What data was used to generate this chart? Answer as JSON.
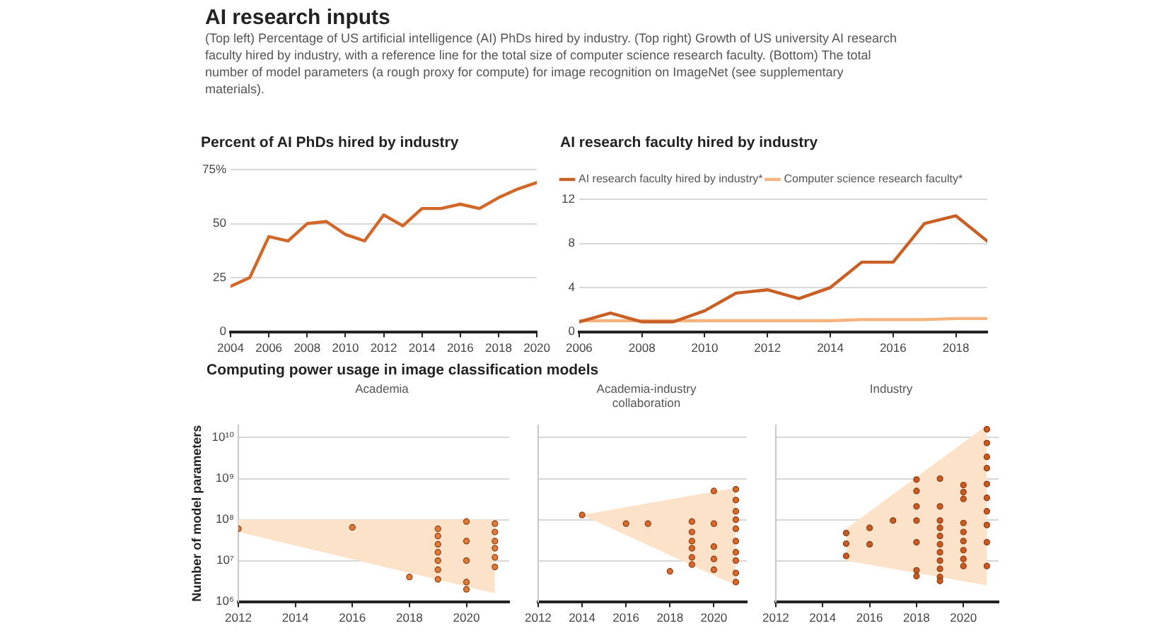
{
  "chart_data": [
    {
      "type": "other",
      "title": "AI research inputs",
      "subtitle": "(Top left) Percentage of US artificial intelligence (AI) PhDs hired by industry. (Top right) Growth of US university AI research faculty hired by industry, with a reference line for the total size of computer science research faculty. (Bottom) The total number of model parameters (a rough proxy for compute) for image recognition on ImageNet (see supplementary materials)."
    },
    {
      "type": "line",
      "title": "Percent of AI PhDs hired by industry",
      "x": [
        2004,
        2005,
        2006,
        2007,
        2008,
        2009,
        2010,
        2011,
        2012,
        2013,
        2014,
        2015,
        2016,
        2017,
        2018,
        2019,
        2020
      ],
      "series": [
        {
          "color": "#d2672a",
          "values": [
            21,
            25,
            44,
            42,
            50,
            51,
            45,
            42,
            54,
            49,
            57,
            57,
            59,
            57,
            62,
            66,
            69
          ]
        }
      ],
      "xlim": [
        2004,
        2020
      ],
      "xticks": [
        2004,
        2006,
        2008,
        2010,
        2012,
        2014,
        2016,
        2018,
        2020
      ],
      "ylim": [
        0,
        75
      ],
      "yticks": [
        0,
        25,
        50,
        {
          "value": 75,
          "label": "75%"
        }
      ],
      "grid": "y"
    },
    {
      "type": "line",
      "title": "AI research faculty hired by industry",
      "x": [
        2006,
        2007,
        2008,
        2009,
        2010,
        2011,
        2012,
        2013,
        2014,
        2015,
        2016,
        2017,
        2018,
        2019
      ],
      "series": [
        {
          "name": "AI research faculty hired by industry*",
          "color": "#c85f25",
          "values": [
            0.9,
            1.7,
            0.9,
            0.9,
            1.9,
            3.5,
            3.8,
            3.0,
            4.0,
            6.3,
            6.3,
            9.8,
            10.5,
            8.2
          ]
        },
        {
          "name": "Computer science research faculty*",
          "color": "#f6b27c",
          "values": [
            1.0,
            1.0,
            1.0,
            1.0,
            1.0,
            1.0,
            1.0,
            1.0,
            1.0,
            1.1,
            1.1,
            1.1,
            1.2,
            1.2
          ]
        }
      ],
      "xlim": [
        2006,
        2019
      ],
      "xticks": [
        2006,
        2008,
        2010,
        2012,
        2014,
        2016,
        2018
      ],
      "ylim": [
        0,
        12
      ],
      "yticks": [
        0,
        4,
        8,
        12
      ],
      "grid": "y",
      "legend": "top left"
    },
    {
      "type": "scatter",
      "title": "Computing power usage in image classification models",
      "subtitle": "Academia",
      "ylabel": "Number of model parameters",
      "log": "y",
      "series": [
        {
          "type": "line",
          "color": "#fbe2c9",
          "x": [
            2012,
            2021
          ],
          "values": [
            null,
            null
          ],
          "lower": [
            50000000.0,
            1600000.0
          ],
          "upper": [
            100000000.0,
            100000000.0
          ]
        },
        {
          "color": "#e07b3a",
          "marker": "circle",
          "x": [
            2012,
            2016,
            2018,
            2019,
            2019,
            2019,
            2019,
            2019,
            2019,
            2019,
            2020,
            2020,
            2020,
            2020,
            2020,
            2021,
            2021,
            2021,
            2021,
            2021,
            2021
          ],
          "values": [
            60000000.0,
            65000000.0,
            4000000.0,
            60000000.0,
            40000000.0,
            25000000.0,
            16000000.0,
            10000000.0,
            6000000.0,
            3500000.0,
            90000000.0,
            30000000.0,
            10000000.0,
            3000000.0,
            2000000.0,
            80000000.0,
            50000000.0,
            30000000.0,
            20000000.0,
            12000000.0,
            7000000.0
          ]
        }
      ],
      "xlim": [
        2012,
        2021.5
      ],
      "xticks": [
        2012,
        2014,
        2016,
        2018,
        2020
      ],
      "ylim": [
        1000000.0,
        20000000000.0
      ],
      "yticks": [
        {
          "value": 1000000.0,
          "label": "10⁶"
        },
        {
          "value": 10000000.0,
          "label": "10⁷"
        },
        {
          "value": 100000000.0,
          "label": "10⁸"
        },
        {
          "value": 1000000000.0,
          "label": "10⁹"
        },
        {
          "value": 10000000000.0,
          "label": "10¹⁰"
        }
      ],
      "grid": "y"
    },
    {
      "type": "scatter",
      "subtitle": "Academia-industry collaboration",
      "log": "y",
      "tick_labels": "x",
      "series": [
        {
          "type": "line",
          "color": "#fbe2c9",
          "x": [
            2014,
            2021
          ],
          "values": [
            null,
            null
          ],
          "lower": [
            130000000.0,
            2500000.0
          ],
          "upper": [
            130000000.0,
            600000000.0
          ]
        },
        {
          "color": "#d9692a",
          "marker": "circle",
          "x": [
            2014,
            2016,
            2017,
            2018,
            2019,
            2019,
            2019,
            2019,
            2019,
            2019,
            2020,
            2020,
            2020,
            2020,
            2020,
            2021,
            2021,
            2021,
            2021,
            2021,
            2021,
            2021,
            2021,
            2021,
            2021
          ],
          "values": [
            130000000.0,
            80000000.0,
            80000000.0,
            5500000.0,
            90000000.0,
            50000000.0,
            30000000.0,
            20000000.0,
            12000000.0,
            8000000.0,
            500000000.0,
            80000000.0,
            22000000.0,
            11000000.0,
            6000000.0,
            550000000.0,
            300000000.0,
            160000000.0,
            100000000.0,
            60000000.0,
            30000000.0,
            16000000.0,
            10000000.0,
            5000000.0,
            3000000.0
          ]
        }
      ],
      "xlim": [
        2012,
        2021.5
      ],
      "xticks": [
        2012,
        2014,
        2016,
        2018,
        2020
      ],
      "ylim": [
        1000000.0,
        20000000000.0
      ],
      "yticks": [
        1000000.0,
        10000000.0,
        100000000.0,
        1000000000.0,
        10000000000.0
      ],
      "grid": "y"
    },
    {
      "type": "scatter",
      "subtitle": "Industry",
      "log": "y",
      "tick_labels": "x",
      "series": [
        {
          "type": "line",
          "color": "#fbe2c9",
          "x": [
            2015,
            2021
          ],
          "values": [
            null,
            null
          ],
          "lower": [
            10000000.0,
            2500000.0
          ],
          "upper": [
            60000000.0,
            20000000000.0
          ]
        },
        {
          "color": "#c85a22",
          "marker": "circle",
          "x": [
            2015,
            2015,
            2015,
            2016,
            2016,
            2017,
            2018,
            2018,
            2018,
            2018,
            2018,
            2018,
            2018,
            2019,
            2019,
            2019,
            2019,
            2019,
            2019,
            2019,
            2019,
            2019,
            2019,
            2019,
            2020,
            2020,
            2020,
            2020,
            2020,
            2020,
            2020,
            2020,
            2020,
            2021,
            2021,
            2021,
            2021,
            2021,
            2021,
            2021,
            2021,
            2021,
            2021
          ],
          "values": [
            47000000.0,
            26000000.0,
            13000000.0,
            63000000.0,
            25000000.0,
            95000000.0,
            950000000.0,
            500000000.0,
            210000000.0,
            95000000.0,
            28000000.0,
            5800000.0,
            4200000.0,
            1000000000.0,
            210000000.0,
            95000000.0,
            63000000.0,
            40000000.0,
            25000000.0,
            16000000.0,
            10000000.0,
            6300000.0,
            4000000.0,
            3200000.0,
            700000000.0,
            470000000.0,
            320000000.0,
            83000000.0,
            50000000.0,
            30000000.0,
            18000000.0,
            11000000.0,
            7400000.0,
            16000000000.0,
            7400000000.0,
            3400000000.0,
            1800000000.0,
            740000000.0,
            340000000.0,
            160000000.0,
            74000000.0,
            28000000.0,
            7400000.0
          ]
        }
      ],
      "xlim": [
        2012,
        2021.5
      ],
      "xticks": [
        2012,
        2014,
        2016,
        2018,
        2020
      ],
      "ylim": [
        1000000.0,
        20000000000.0
      ],
      "yticks": [
        1000000.0,
        10000000.0,
        100000000.0,
        1000000000.0,
        10000000000.0
      ],
      "grid": "y"
    }
  ]
}
